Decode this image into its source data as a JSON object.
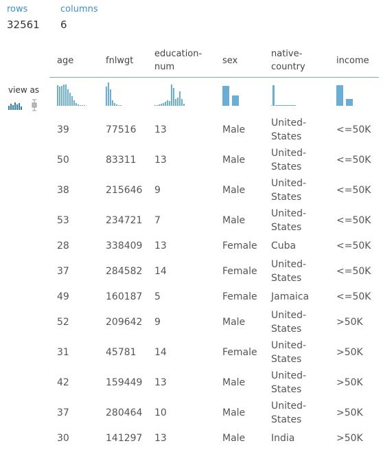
{
  "summary": {
    "rows_label": "rows",
    "rows": 32561,
    "columns_label": "columns",
    "columns": 6
  },
  "view_as": "view as",
  "table": {
    "headers": [
      "age",
      "fnlwgt",
      "education-num",
      "sex",
      "native-country",
      "income"
    ],
    "rows": [
      [
        39,
        77516,
        13,
        "Male",
        "United-States",
        "<=50K"
      ],
      [
        50,
        83311,
        13,
        "Male",
        "United-States",
        "<=50K"
      ],
      [
        38,
        215646,
        9,
        "Male",
        "United-States",
        "<=50K"
      ],
      [
        53,
        234721,
        7,
        "Male",
        "United-States",
        "<=50K"
      ],
      [
        28,
        338409,
        13,
        "Female",
        "Cuba",
        "<=50K"
      ],
      [
        37,
        284582,
        14,
        "Female",
        "United-States",
        "<=50K"
      ],
      [
        49,
        160187,
        5,
        "Female",
        "Jamaica",
        "<=50K"
      ],
      [
        52,
        209642,
        9,
        "Male",
        "United-States",
        ">50K"
      ],
      [
        31,
        45781,
        14,
        "Female",
        "United-States",
        ">50K"
      ],
      [
        42,
        159449,
        13,
        "Male",
        "United-States",
        ">50K"
      ],
      [
        37,
        280464,
        10,
        "Male",
        "United-States",
        ">50K"
      ],
      [
        30,
        141297,
        13,
        "Male",
        "India",
        ">50K"
      ]
    ]
  }
}
